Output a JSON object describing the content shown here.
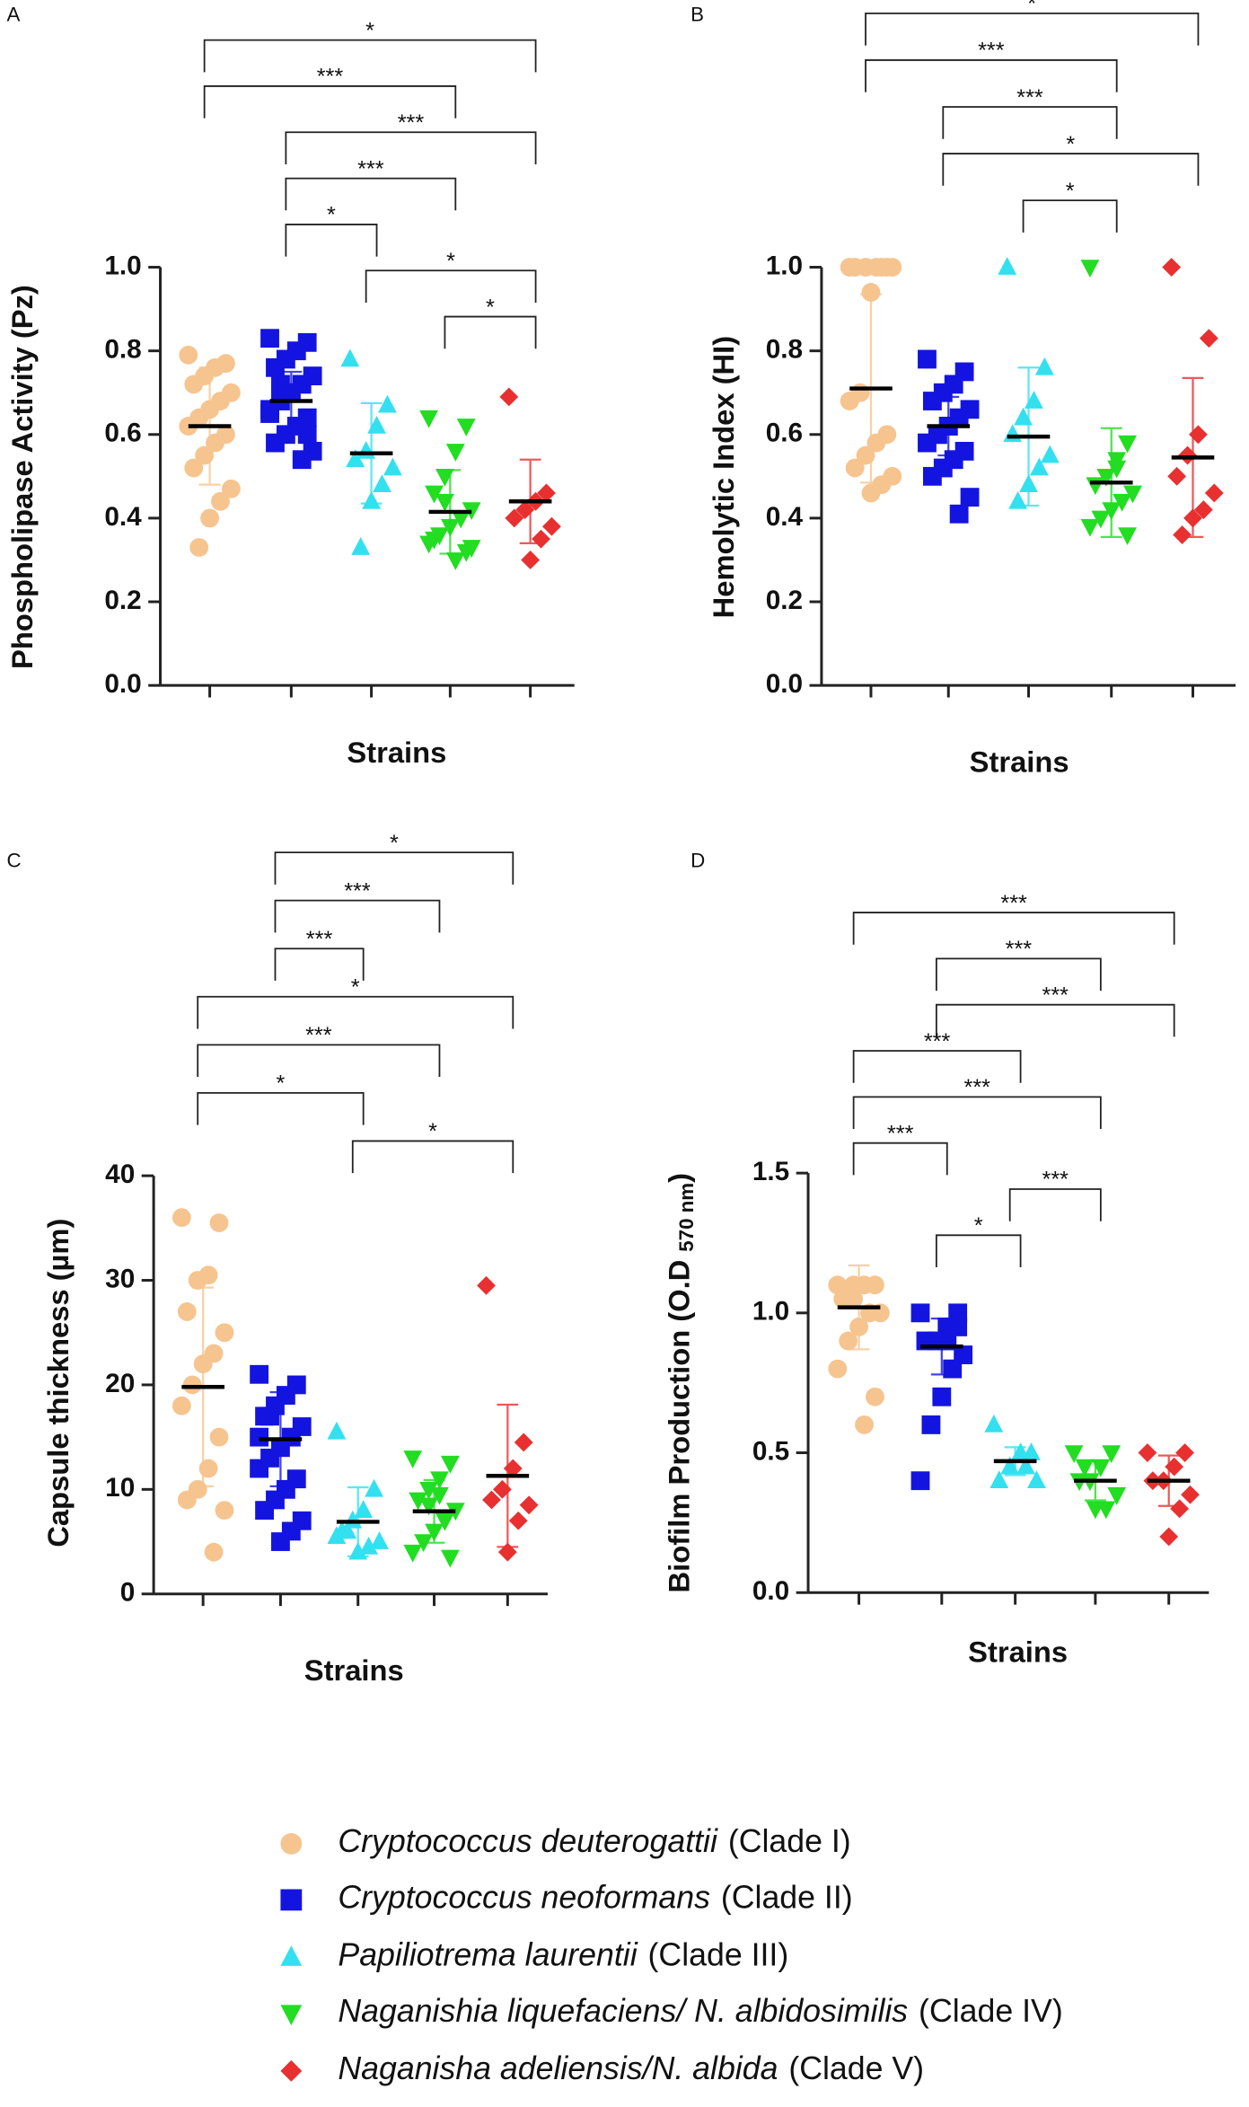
{
  "chart_data": [
    {
      "type": "dot",
      "panel": "A",
      "ylabel": "Phospholipase Activity (Pz)",
      "xlabel": "Strains",
      "ylim": [
        0,
        1.0
      ],
      "yticks": [
        {
          "value": 0,
          "label": "0.0"
        },
        0.2,
        0.4,
        0.6,
        0.8,
        {
          "value": 1.0,
          "label": "1.0"
        }
      ],
      "series": [
        {
          "values": [
            0.79,
            0.77,
            0.76,
            0.74,
            0.72,
            0.7,
            0.68,
            0.66,
            0.64,
            0.62,
            0.6,
            0.58,
            0.55,
            0.52,
            0.47,
            0.44,
            0.4,
            0.33
          ],
          "mean": 0.62,
          "sd": 0.14
        },
        {
          "values": [
            0.83,
            0.82,
            0.8,
            0.78,
            0.76,
            0.74,
            0.72,
            0.7,
            0.68,
            0.66,
            0.64,
            0.62,
            0.6,
            0.58,
            0.56,
            0.54,
            0.7,
            0.72,
            0.65,
            0.6
          ],
          "mean": 0.68,
          "sd": 0.07
        },
        {
          "values": [
            0.78,
            0.67,
            0.62,
            0.56,
            0.54,
            0.52,
            0.48,
            0.44,
            0.33
          ],
          "mean": 0.555,
          "sd": 0.12
        },
        {
          "values": [
            0.64,
            0.62,
            0.56,
            0.5,
            0.46,
            0.42,
            0.4,
            0.38,
            0.36,
            0.34,
            0.32,
            0.3,
            0.44,
            0.35,
            0.33
          ],
          "mean": 0.415,
          "sd": 0.1
        },
        {
          "values": [
            0.69,
            0.46,
            0.44,
            0.42,
            0.4,
            0.38,
            0.35,
            0.3
          ],
          "mean": 0.44,
          "sd": 0.1
        }
      ],
      "comparisons": [
        {
          "from": 0,
          "to": 4,
          "label": "*"
        },
        {
          "from": 0,
          "to": 3,
          "label": "***"
        },
        {
          "from": 1,
          "to": 4,
          "label": "***"
        },
        {
          "from": 1,
          "to": 3,
          "label": "***"
        },
        {
          "from": 1,
          "to": 2,
          "label": "*"
        },
        {
          "from": 2,
          "to": 4,
          "label": "*"
        },
        {
          "from": 3,
          "to": 4,
          "label": "*"
        }
      ]
    },
    {
      "type": "dot",
      "panel": "B",
      "ylabel": "Hemolytic Index (HI)",
      "xlabel": "Strains",
      "ylim": [
        0,
        1.0
      ],
      "yticks": [
        {
          "value": 0,
          "label": "0.0"
        },
        0.2,
        0.4,
        0.6,
        0.8,
        {
          "value": 1.0,
          "label": "1.0"
        }
      ],
      "series": [
        {
          "values": [
            1,
            1,
            1,
            1,
            1,
            1,
            1,
            0.94,
            0.7,
            0.68,
            0.6,
            0.58,
            0.55,
            0.52,
            0.5,
            0.48,
            0.46
          ],
          "mean": 0.71,
          "sd": 0.225
        },
        {
          "values": [
            0.78,
            0.75,
            0.72,
            0.7,
            0.68,
            0.66,
            0.64,
            0.62,
            0.6,
            0.58,
            0.56,
            0.54,
            0.52,
            0.5,
            0.45,
            0.41,
            0.62,
            0.6
          ],
          "mean": 0.62,
          "sd": 0.07
        },
        {
          "values": [
            1.0,
            0.76,
            0.68,
            0.64,
            0.6,
            0.55,
            0.52,
            0.48,
            0.44
          ],
          "mean": 0.595,
          "sd": 0.165
        },
        {
          "values": [
            1.0,
            0.58,
            0.54,
            0.5,
            0.48,
            0.46,
            0.44,
            0.42,
            0.4,
            0.38,
            0.36,
            0.52
          ],
          "mean": 0.485,
          "sd": 0.13
        },
        {
          "values": [
            1.0,
            0.83,
            0.6,
            0.55,
            0.5,
            0.46,
            0.42,
            0.4,
            0.36
          ],
          "mean": 0.545,
          "sd": 0.19
        }
      ],
      "comparisons": [
        {
          "from": 0,
          "to": 4,
          "label": "*"
        },
        {
          "from": 0,
          "to": 3,
          "label": "***"
        },
        {
          "from": 1,
          "to": 3,
          "label": "***"
        },
        {
          "from": 1,
          "to": 4,
          "label": "*"
        },
        {
          "from": 2,
          "to": 3,
          "label": "*"
        }
      ]
    },
    {
      "type": "dot",
      "panel": "C",
      "ylabel": "Capsule thickness (µm)",
      "xlabel": "Strains",
      "ylim": [
        0,
        40
      ],
      "yticks": [
        0,
        10,
        20,
        30,
        40
      ],
      "series": [
        {
          "values": [
            36,
            35.5,
            30.5,
            30,
            27,
            25,
            23,
            22,
            20,
            18,
            15,
            12,
            10,
            9,
            8,
            4
          ],
          "mean": 19.8,
          "sd": 9.5
        },
        {
          "values": [
            21,
            20,
            19,
            18,
            17,
            16,
            15,
            14,
            13,
            12,
            11,
            10,
            9,
            8,
            7,
            6,
            5,
            17,
            15
          ],
          "mean": 14.8,
          "sd": 4.5
        },
        {
          "values": [
            15.5,
            10,
            8,
            7,
            6,
            5,
            4.5,
            4,
            6,
            5.5
          ],
          "mean": 6.9,
          "sd": 3.3
        },
        {
          "values": [
            13,
            12.5,
            11,
            10,
            9,
            8,
            7,
            6,
            5,
            4,
            3.5,
            9.5,
            8.5
          ],
          "mean": 7.9,
          "sd": 3
        },
        {
          "values": [
            29.5,
            14.5,
            12,
            10,
            9,
            8.5,
            7,
            4
          ],
          "mean": 11.3,
          "sd": 6.8
        }
      ],
      "comparisons": [
        {
          "from": 1,
          "to": 4,
          "label": "*"
        },
        {
          "from": 1,
          "to": 3,
          "label": "***"
        },
        {
          "from": 1,
          "to": 2,
          "label": "***"
        },
        {
          "from": 0,
          "to": 4,
          "label": "*"
        },
        {
          "from": 0,
          "to": 3,
          "label": "***"
        },
        {
          "from": 0,
          "to": 2,
          "label": "*"
        },
        {
          "from": 2,
          "to": 4,
          "label": "*"
        }
      ]
    },
    {
      "type": "dot",
      "panel": "D",
      "ylabel": "Biofilm Production (O.D",
      "ylabel_sub": "570 nm",
      "ylabel_end": ")",
      "xlabel": "Strains",
      "ylim": [
        0,
        1.5
      ],
      "yticks": [
        {
          "value": 0,
          "label": "0.0"
        },
        0.5,
        {
          "value": 1.0,
          "label": "1.0"
        },
        1.5
      ],
      "series": [
        {
          "values": [
            1.1,
            1.1,
            1.1,
            1.05,
            1.05,
            1.0,
            1.0,
            0.95,
            0.9,
            0.8,
            0.7,
            0.6,
            1.1,
            1.05
          ],
          "mean": 1.02,
          "sd": 0.15
        },
        {
          "values": [
            1.0,
            1.0,
            0.95,
            0.9,
            0.9,
            0.85,
            0.8,
            0.7,
            0.6,
            0.4,
            0.95,
            0.9
          ],
          "mean": 0.88,
          "sd": 0.1
        },
        {
          "values": [
            0.6,
            0.5,
            0.5,
            0.45,
            0.4,
            0.4,
            0.45
          ],
          "mean": 0.47,
          "sd": 0.05
        },
        {
          "values": [
            0.5,
            0.5,
            0.45,
            0.4,
            0.4,
            0.35,
            0.3,
            0.3,
            0.45
          ],
          "mean": 0.4,
          "sd": 0.07
        },
        {
          "values": [
            0.5,
            0.5,
            0.45,
            0.4,
            0.4,
            0.35,
            0.3,
            0.2
          ],
          "mean": 0.4,
          "sd": 0.09
        }
      ],
      "comparisons": [
        {
          "from": 0,
          "to": 4,
          "label": "***"
        },
        {
          "from": 1,
          "to": 3,
          "label": "***"
        },
        {
          "from": 1,
          "to": 4,
          "label": "***"
        },
        {
          "from": 0,
          "to": 2,
          "label": "***"
        },
        {
          "from": 0,
          "to": 3,
          "label": "***"
        },
        {
          "from": 0,
          "to": 1,
          "label": "***"
        },
        {
          "from": 2,
          "to": 3,
          "label": "***"
        },
        {
          "from": 1,
          "to": 2,
          "label": "*"
        }
      ]
    }
  ],
  "legend": [
    {
      "species": "Cryptococcus deuterogattii",
      "clade": "(Clade I)",
      "color": "#f6c48f",
      "marker": "circle"
    },
    {
      "species": "Cryptococcus neoformans",
      "clade": "(Clade II)",
      "color": "#1414e0",
      "marker": "square"
    },
    {
      "species": "Papiliotrema laurentii",
      "clade": "(Clade III)",
      "color": "#33e0f0",
      "marker": "triangle-up"
    },
    {
      "species": "Naganishia liquefaciens/ N. albidosimilis",
      "clade": "(Clade IV)",
      "color": "#22dd22",
      "marker": "triangle-down"
    },
    {
      "species": "Naganisha adeliensis/N. albida",
      "clade": "(Clade V)",
      "color": "#e83030",
      "marker": "diamond"
    }
  ]
}
